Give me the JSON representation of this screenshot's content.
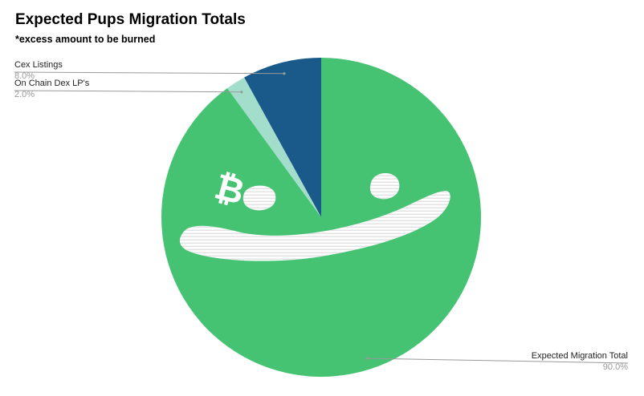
{
  "chart_data": {
    "type": "pie",
    "title": "Expected Pups Migration Totals",
    "subtitle": "*excess amount to be burned",
    "slices": [
      {
        "label": "Expected Migration Total",
        "value": 90.0,
        "display": "90.0%",
        "color": "#45c373"
      },
      {
        "label": "On Chain Dex LP's",
        "value": 2.0,
        "display": "2.0%",
        "color": "#a3ddcc"
      },
      {
        "label": "Cex Listings",
        "value": 8.0,
        "display": "8.0%",
        "color": "#1a5a8a"
      }
    ],
    "legend": "leader-lines"
  },
  "overlay": {
    "face_color": "#ffffff",
    "stripe_color": "#e3e3e3",
    "bitcoin_glyph": "₿"
  }
}
